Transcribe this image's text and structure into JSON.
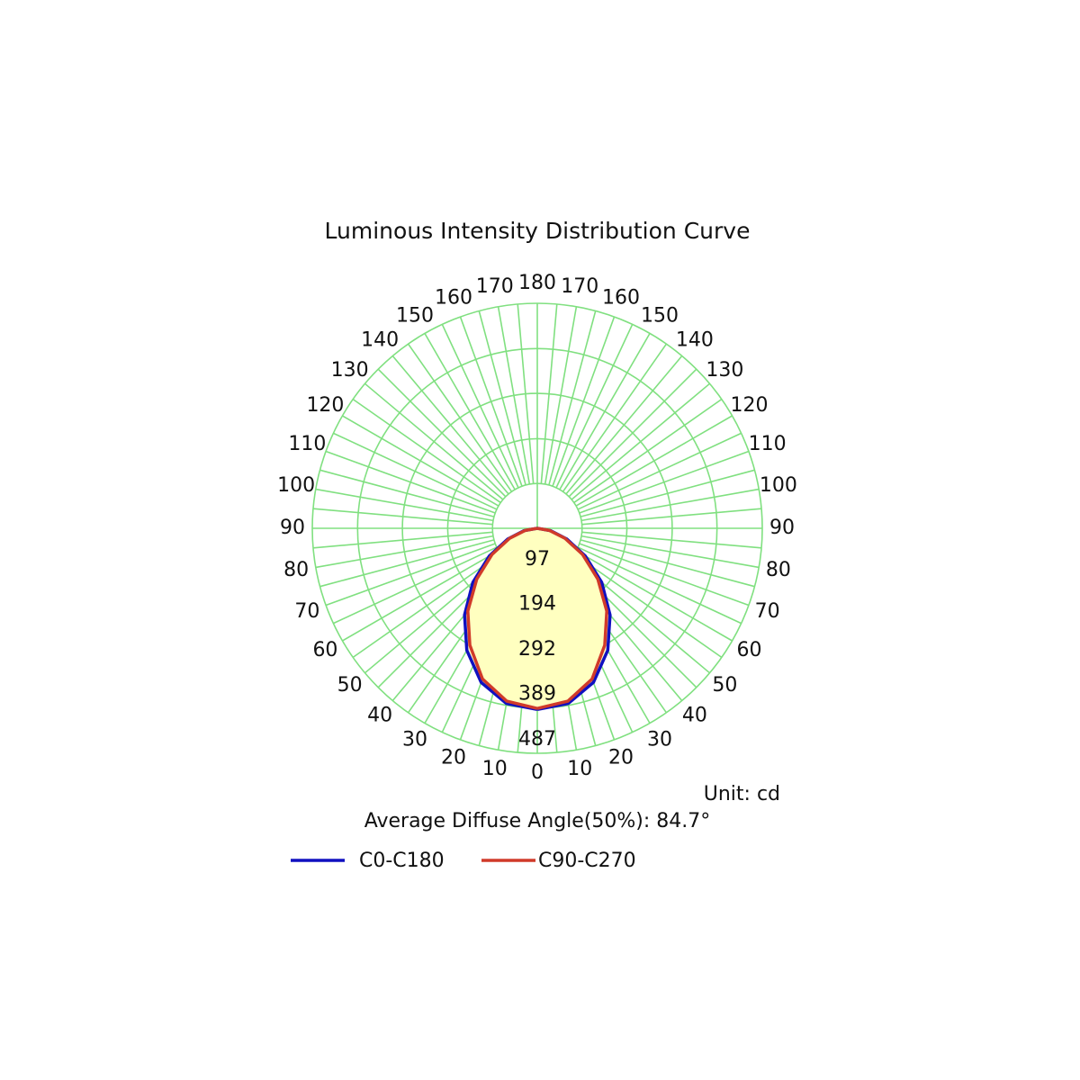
{
  "chart_data": {
    "type": "polar",
    "title": "Luminous Intensity Distribution Curve",
    "unit": "Unit: cd",
    "note": "Average Diffuse Angle(50%): 84.7°",
    "x": [
      0,
      10,
      20,
      30,
      40,
      50,
      60,
      70,
      80,
      90
    ],
    "series": [
      {
        "name": "C0-C180",
        "color": "#1010c0",
        "values": [
          392,
          385,
          355,
          305,
          245,
          182,
          120,
          68,
          29,
          0
        ]
      },
      {
        "name": "C90-C270",
        "color": "#d03a2a",
        "values": [
          390,
          380,
          347,
          292,
          234,
          171,
          113,
          64,
          27,
          0
        ]
      }
    ],
    "rlim": [
      0,
      487
    ],
    "rticks": [
      97,
      194,
      292,
      389,
      487
    ],
    "angle_ticks": [
      0,
      10,
      20,
      30,
      40,
      50,
      60,
      70,
      80,
      90,
      100,
      110,
      120,
      130,
      140,
      150,
      160,
      170,
      180
    ],
    "fill": "#ffffc0",
    "grid_color": "#80e080"
  }
}
